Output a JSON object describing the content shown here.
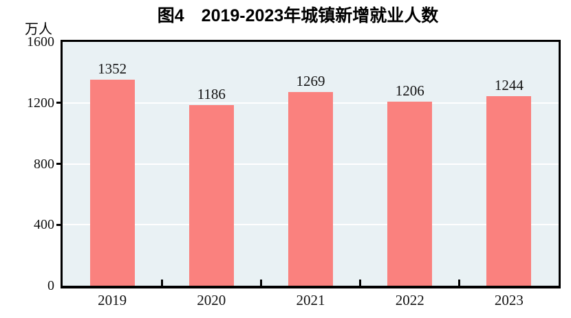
{
  "title": "图4　2019-2023年城镇新增就业人数",
  "unit_label": "万人",
  "colors": {
    "bar": "#fa817e",
    "plot_bg": "#e9f1f4",
    "gridline": "#ffffff",
    "axis": "#000000",
    "text": "#000000"
  },
  "chart_data": {
    "type": "bar",
    "categories": [
      "2019",
      "2020",
      "2021",
      "2022",
      "2023"
    ],
    "values": [
      1352,
      1186,
      1269,
      1206,
      1244
    ],
    "title": "图4　2019-2023年城镇新增就业人数",
    "xlabel": "",
    "ylabel": "万人",
    "ylim": [
      0,
      1600
    ],
    "yticks": [
      0,
      400,
      800,
      1200,
      1600
    ],
    "grid": true,
    "gridline_color": "#ffffff",
    "legend": false,
    "bar_color": "#fa817e",
    "plot_background": "#e9f1f4"
  }
}
